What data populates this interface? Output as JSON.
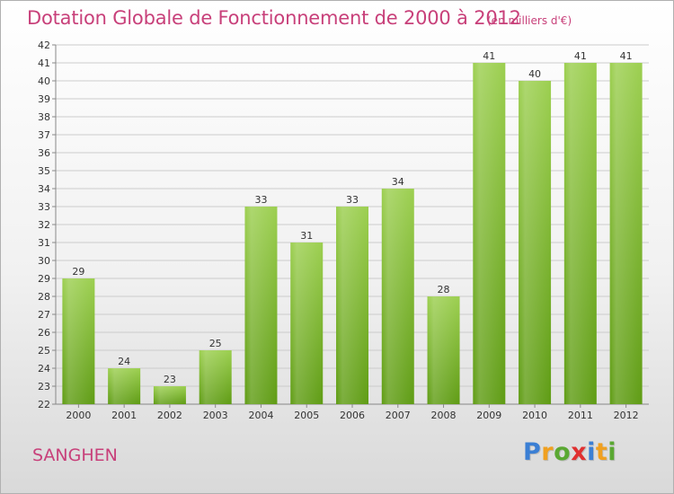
{
  "header": {
    "title": "Dotation Globale de Fonctionnement de 2000 à 2012",
    "subtitle": "(en milliers d'€)"
  },
  "footer": {
    "commune": "SANGHEN",
    "logo_letters": [
      "P",
      "r",
      "o",
      "x",
      "i",
      "t",
      "i"
    ],
    "logo_colors": [
      "#3b7fd4",
      "#f0a020",
      "#5aa832",
      "#e03030",
      "#3b7fd4",
      "#f0a020",
      "#5aa832"
    ]
  },
  "colors": {
    "bar_top": "#9ccf50",
    "bar_bottom": "#5f9c14",
    "grid": "#cccccc",
    "title": "#c8407a"
  },
  "chart_data": {
    "type": "bar",
    "title": "Dotation Globale de Fonctionnement de 2000 à 2012",
    "subtitle": "(en milliers d'€)",
    "xlabel": "",
    "ylabel": "",
    "categories": [
      "2000",
      "2001",
      "2002",
      "2003",
      "2004",
      "2005",
      "2006",
      "2007",
      "2008",
      "2009",
      "2010",
      "2011",
      "2012"
    ],
    "values": [
      29,
      24,
      23,
      25,
      33,
      31,
      33,
      34,
      28,
      41,
      40,
      41,
      41
    ],
    "ylim": [
      22,
      42
    ],
    "yticks": [
      22,
      23,
      24,
      25,
      26,
      27,
      28,
      29,
      30,
      31,
      32,
      33,
      34,
      35,
      36,
      37,
      38,
      39,
      40,
      41,
      42
    ],
    "grid": true,
    "legend": "none"
  }
}
